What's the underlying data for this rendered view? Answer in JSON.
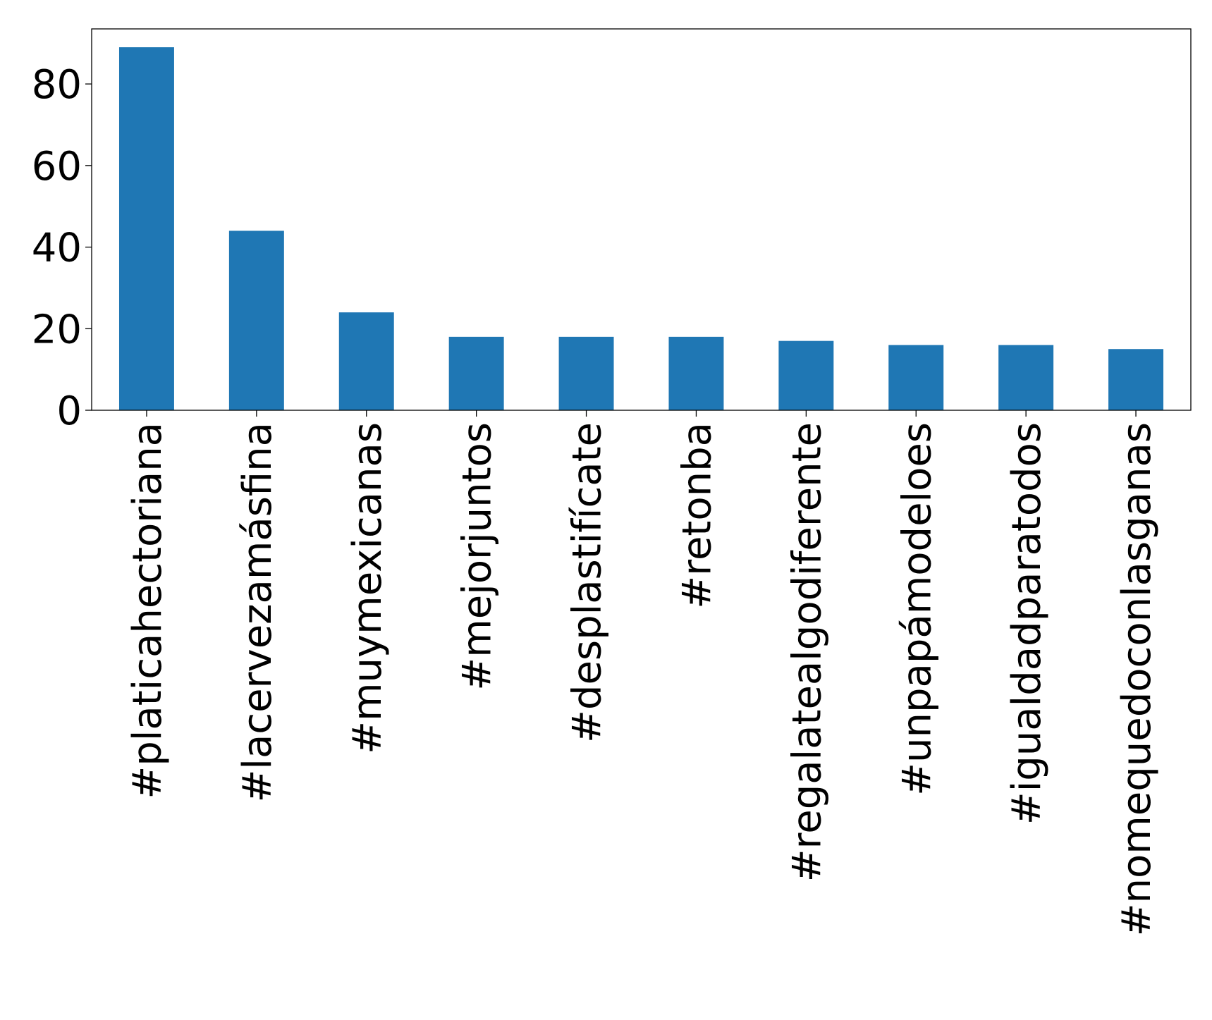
{
  "chart_data": {
    "type": "bar",
    "categories": [
      "#platicahectoriana",
      "#lacervezamásfina",
      "#muymexicanas",
      "#mejorjuntos",
      "#desplastifícate",
      "#retonba",
      "#regalatealgodiferente",
      "#unpapámodeloes",
      "#igualdadparatodos",
      "#nomequedoconlasganas"
    ],
    "values": [
      89,
      44,
      24,
      18,
      18,
      18,
      17,
      16,
      16,
      15
    ],
    "title": "",
    "xlabel": "",
    "ylabel": "",
    "ylim": [
      0,
      93.5
    ],
    "yticks": [
      0,
      20,
      40,
      60,
      80
    ],
    "grid": false,
    "legend": "none",
    "bar_color": "#1f77b4"
  }
}
